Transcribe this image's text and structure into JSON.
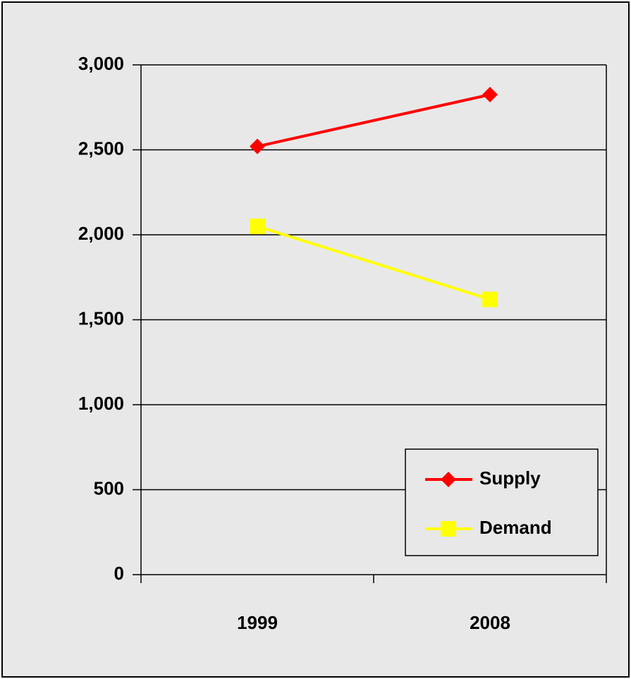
{
  "chart_data": {
    "type": "line",
    "categories": [
      "1999",
      "2008"
    ],
    "series": [
      {
        "name": "Supply",
        "color": "#ff0000",
        "marker": "diamond",
        "values": [
          2520,
          2825
        ]
      },
      {
        "name": "Demand",
        "color": "#ffff00",
        "marker": "square",
        "values": [
          2050,
          1620
        ]
      }
    ],
    "ylim": [
      0,
      3000
    ],
    "yticks": [
      0,
      500,
      {
        "value": 1000,
        "label": "1,000"
      },
      {
        "value": 1500,
        "label": "1,500"
      },
      {
        "value": 2000,
        "label": "2,000"
      },
      {
        "value": 2500,
        "label": "2,500"
      },
      {
        "value": 3000,
        "label": "3,000"
      }
    ],
    "grid": true,
    "legend": "lower right"
  }
}
